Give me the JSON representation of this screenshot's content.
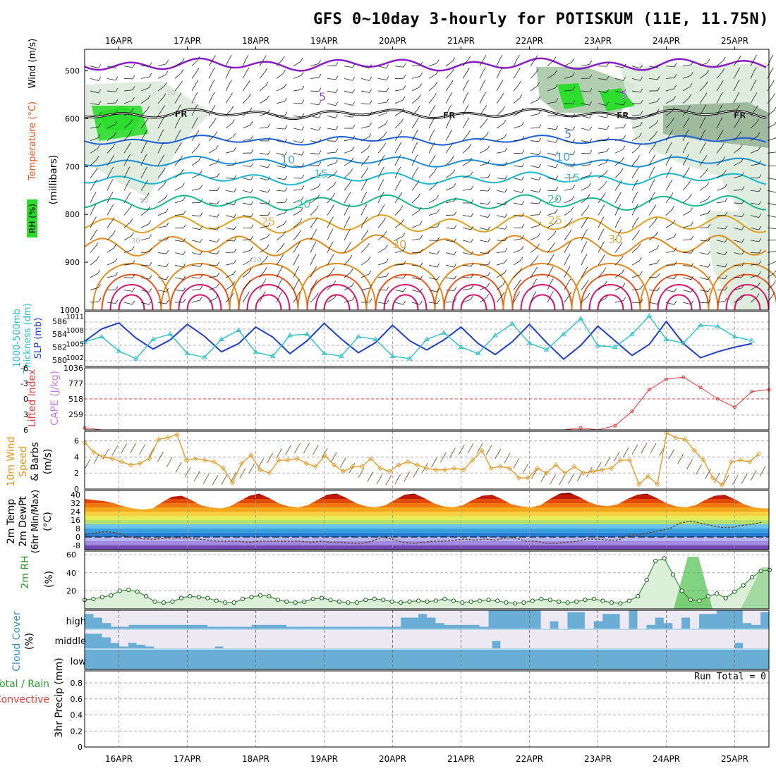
{
  "title": "GFS 0~10day 3-hourly for POTISKUM (11E, 11.75N)",
  "date_labels": [
    "16APR",
    "17APR",
    "18APR",
    "19APR",
    "20APR",
    "21APR",
    "22APR",
    "23APR",
    "24APR",
    "25APR"
  ],
  "colors": {
    "isotherm_cold": "#1c5fd6",
    "isotherm_mid": "#19b6cf",
    "isotherm_warm": "#e08a1e",
    "isotherm_hot": "#d8156e",
    "isotherm_top": "#8a1bc9",
    "rh_dark": "#5f8a5f",
    "rh_mid": "#a9c9a9",
    "rh_light": "#dcebdc",
    "rh_bright": "#2edc2e",
    "slp": "#1f3fc4",
    "thickness": "#2cc0c8",
    "cape": "#c27cf0",
    "lifted": "#e63c3c",
    "wind10": "#e8951b",
    "rh2m": "#2e9a2e",
    "cloud": "#6aaed6",
    "cloud_clear": "#eeeaf4"
  },
  "panels": {
    "upper_air": {
      "ylabel_rh": "RH (%)",
      "ylabel_temp": "Temperature (°C)",
      "ylabel_wind": "Wind (m/s)",
      "ylabel_units": "(millibars)",
      "yticks": [
        "500",
        "600",
        "700",
        "800",
        "900",
        "1000"
      ],
      "contour_labels": [
        "5",
        "5",
        "5",
        "10",
        "10",
        "15",
        "15",
        "20",
        "20",
        "25",
        "25",
        "30",
        "30",
        "FR",
        "FR",
        "FR",
        "FR",
        "10",
        "50",
        "30",
        "10"
      ]
    },
    "slp_thickness": {
      "ylabel_thick": "1000-500mb",
      "ylabel_thick2": "Thickness (dm)",
      "ylabel_slp": "SLP (mb)",
      "left_ticks": [
        "586",
        "584",
        "582",
        "580"
      ],
      "right_ticks": [
        "1011",
        "1008",
        "1005",
        "1002"
      ]
    },
    "cape_li": {
      "ylabel_li": "Lifted Index",
      "ylabel_cape": "CAPE (J/kg)",
      "left_ticks": [
        "-6",
        "-3",
        "0",
        "3",
        "6"
      ],
      "right_ticks": [
        "1036",
        "777",
        "518",
        "259"
      ]
    },
    "wind10m": {
      "ylabel_1": "10m Wind",
      "ylabel_2": "Speed",
      "ylabel_3": "& Barbs",
      "ylabel_units": "(m/s)",
      "yticks": [
        "6",
        "4",
        "2",
        "0"
      ]
    },
    "temp2m": {
      "ylabel_1": "2m Temp",
      "ylabel_2": "2m DewPt",
      "ylabel_3": "(6hr Min/Max)",
      "ylabel_units": "(°C)",
      "yticks": [
        "40",
        "32",
        "24",
        "16",
        "8",
        "0",
        "-8"
      ]
    },
    "rh2m": {
      "ylabel": "2m RH",
      "ylabel_units": "(%)",
      "yticks": [
        "60",
        "40",
        "20"
      ]
    },
    "cloud": {
      "ylabel": "Cloud Cover",
      "ylabel_units": "(%)",
      "levels": [
        "high",
        "middle",
        "low"
      ]
    },
    "precip": {
      "ylabel_1": "Total / Rain",
      "ylabel_2": "Convective",
      "ylabel_3": "3hr Precip (mm)",
      "run_total": "Run Total = 0",
      "yticks": [
        "0.8",
        "0.6",
        "0.4",
        "0.2",
        "0"
      ]
    }
  },
  "chart_data": [
    {
      "type": "line",
      "name": "SLP",
      "units": "mb",
      "x_step_hours": 6,
      "values": [
        1005.5,
        1008.2,
        1009.5,
        1006.2,
        1003.8,
        1005.8,
        1009.2,
        1006.6,
        1003.2,
        1005.0,
        1008.6,
        1006.4,
        1002.8,
        1005.6,
        1009.4,
        1006.0,
        1003.0,
        1005.2,
        1009.0,
        1005.6,
        1003.6,
        1005.8,
        1008.6,
        1005.0,
        1002.6,
        1005.4,
        1009.2,
        1005.2,
        1001.6,
        1004.6,
        1008.8,
        1005.6,
        1002.4,
        1004.8,
        1009.8,
        1005.0,
        1001.9,
        1003.2,
        1004.2,
        1005.0
      ]
    },
    {
      "type": "line",
      "name": "1000-500mb Thickness",
      "units": "dm",
      "x_step_hours": 6,
      "values": [
        582.8,
        583.6,
        581.4,
        580.2,
        583.2,
        584.0,
        581.0,
        580.4,
        583.2,
        584.6,
        581.2,
        580.6,
        583.8,
        584.0,
        581.0,
        580.6,
        583.6,
        583.2,
        580.6,
        580.2,
        583.2,
        584.2,
        582.0,
        581.0,
        583.8,
        585.6,
        582.6,
        581.6,
        584.0,
        586.4,
        582.2,
        582.0,
        584.0,
        586.8,
        583.2,
        582.6,
        585.4,
        585.2,
        583.6,
        583.0
      ]
    },
    {
      "type": "line",
      "name": "Lifted Index",
      "units": "°C",
      "x_step_hours": 6,
      "values": [
        5.6,
        6,
        6,
        6,
        6,
        6,
        6,
        6,
        6,
        6,
        6,
        6,
        6,
        6,
        6,
        6,
        6,
        6,
        6,
        6,
        6,
        6,
        6,
        6,
        6,
        6,
        6,
        6,
        6,
        5.6,
        6,
        5.2,
        2.4,
        -1.8,
        -3.8,
        -4.2,
        -2.2,
        0,
        1.6,
        -1.4,
        -1.8
      ]
    },
    {
      "type": "bar",
      "name": "CAPE",
      "units": "J/kg",
      "x_step_hours": 3,
      "values": [
        0,
        0,
        0,
        0,
        0,
        0,
        0,
        0,
        0,
        0,
        0,
        0,
        0,
        0,
        0,
        0,
        0,
        0,
        0,
        0,
        0,
        0,
        0,
        0,
        0,
        0,
        0,
        0,
        0,
        0,
        0,
        0,
        0,
        0,
        0,
        0,
        0,
        0,
        0,
        0,
        0,
        0,
        0,
        0,
        0,
        0,
        0,
        0,
        0,
        0,
        0,
        0,
        0,
        0,
        0,
        0,
        0,
        0,
        0,
        0,
        0,
        0,
        0,
        0,
        0,
        0,
        0,
        0,
        0,
        0,
        0,
        0,
        0,
        0,
        0,
        0,
        0,
        0,
        0,
        0,
        0,
        0,
        0,
        0,
        0,
        30,
        150,
        620,
        430,
        880,
        400,
        170,
        60,
        60,
        0,
        0,
        60,
        30,
        0
      ]
    },
    {
      "type": "line",
      "name": "10m Wind Speed",
      "units": "m/s",
      "x_step_hours": 3,
      "values": [
        5.8,
        4.6,
        4.0,
        3.8,
        3.4,
        3.0,
        3.2,
        3.8,
        6.2,
        6.4,
        6.8,
        3.6,
        3.8,
        3.6,
        3.4,
        2.6,
        0.8,
        3.2,
        4.2,
        2.4,
        2.0,
        3.6,
        3.6,
        3.8,
        3.2,
        2.8,
        4.2,
        3.0,
        2.2,
        2.8,
        2.8,
        3.8,
        2.6,
        2.2,
        3.0,
        3.4,
        3.0,
        2.6,
        2.4,
        2.4,
        2.6,
        2.4,
        3.6,
        4.8,
        2.6,
        2.8,
        2.6,
        1.4,
        1.4,
        2.6,
        2.0,
        3.0,
        2.0,
        2.8,
        2.0,
        2.2,
        2.4,
        2.6,
        3.6,
        3.6,
        0.6,
        1.6,
        0.6,
        7.0,
        6.4,
        6.2,
        4.8,
        3.6,
        1.4,
        0.5,
        3.4,
        3.6,
        3.4,
        4.4
      ]
    },
    {
      "type": "area",
      "name": "2m Temp",
      "units": "°C",
      "x_step_hours": 3,
      "values": [
        36,
        35,
        34,
        32,
        29,
        27,
        26,
        27,
        33,
        38,
        39,
        35,
        30,
        28,
        27,
        29,
        34,
        39,
        41,
        37,
        32,
        29,
        28,
        30,
        35,
        40,
        41,
        37,
        32,
        29,
        28,
        30,
        35,
        40,
        41,
        37,
        32,
        29,
        28,
        30,
        35,
        39,
        40,
        36,
        31,
        29,
        28,
        30,
        36,
        41,
        42,
        38,
        33,
        30,
        29,
        31,
        36,
        40,
        41,
        37,
        32,
        29,
        28,
        30,
        35,
        39,
        40,
        36,
        31,
        28,
        27,
        27
      ]
    },
    {
      "type": "line",
      "name": "2m DewPt",
      "units": "°C",
      "x_step_hours": 3,
      "values": [
        2,
        4,
        5,
        4,
        1,
        -1,
        -2,
        -2,
        -1,
        -1,
        -1,
        -2,
        -3,
        -4,
        -4,
        -4,
        -5,
        -4,
        -4,
        -4,
        -4,
        -4,
        -5,
        -4,
        -5,
        -5,
        -6,
        -6,
        -4,
        0,
        -2,
        -5,
        -6,
        -5,
        -4,
        -4,
        -3,
        -2,
        -3,
        -2,
        -3,
        -1,
        -1,
        -4,
        -4,
        -6,
        -6,
        -5,
        -4,
        -2,
        -2,
        -3,
        -3,
        2,
        2,
        4,
        6,
        8,
        13,
        15,
        13,
        11,
        9,
        9,
        11,
        12,
        14
      ]
    },
    {
      "type": "line",
      "name": "2m RH",
      "units": "%",
      "x_step_hours": 3,
      "values": [
        10,
        11,
        13,
        15,
        20,
        21,
        19,
        14,
        8,
        7,
        8,
        12,
        14,
        13,
        12,
        9,
        7,
        7,
        11,
        13,
        15,
        14,
        10,
        8,
        7,
        8,
        11,
        12,
        10,
        8,
        7,
        7,
        10,
        11,
        10,
        8,
        7,
        8,
        9,
        8,
        9,
        11,
        9,
        7,
        8,
        9,
        10,
        9,
        7,
        6,
        7,
        9,
        11,
        10,
        8,
        7,
        8,
        10,
        11,
        9,
        7,
        6,
        9,
        14,
        32,
        53,
        56,
        38,
        20,
        10,
        9,
        14,
        17,
        12,
        19,
        26,
        35,
        42,
        43
      ]
    },
    {
      "type": "table",
      "name": "Cloud Cover",
      "units": "%",
      "x_step_hours": 3,
      "high": [
        80,
        60,
        30,
        10,
        10,
        20,
        20,
        20,
        20,
        20,
        20,
        20,
        20,
        20,
        10,
        10,
        10,
        10,
        10,
        20,
        20,
        20,
        20,
        10,
        10,
        10,
        10,
        10,
        10,
        10,
        10,
        10,
        10,
        10,
        10,
        10,
        60,
        60,
        80,
        60,
        30,
        20,
        20,
        20,
        20,
        10,
        100,
        100,
        100,
        100,
        100,
        100,
        0,
        40,
        0,
        90,
        90,
        0,
        40,
        80,
        80,
        0,
        100,
        0,
        20,
        60,
        30,
        0,
        60,
        0,
        80,
        80,
        100,
        100,
        100,
        30,
        20,
        90
      ],
      "middle": [
        80,
        80,
        60,
        30,
        10,
        30,
        20,
        10,
        0,
        0,
        0,
        0,
        0,
        0,
        0,
        10,
        0,
        0,
        0,
        0,
        0,
        0,
        0,
        0,
        0,
        0,
        0,
        0,
        0,
        0,
        0,
        0,
        0,
        0,
        0,
        0,
        0,
        0,
        0,
        0,
        0,
        0,
        0,
        0,
        0,
        0,
        0,
        40,
        0,
        0,
        0,
        0,
        0,
        0,
        0,
        0,
        0,
        0,
        0,
        0,
        0,
        0,
        0,
        0,
        0,
        0,
        0,
        0,
        0,
        0,
        0,
        0,
        0,
        0,
        0,
        30,
        0,
        0,
        0
      ],
      "low": []
    },
    {
      "type": "bar",
      "name": "3hr Precip",
      "units": "mm",
      "run_total": 0,
      "values": []
    }
  ]
}
